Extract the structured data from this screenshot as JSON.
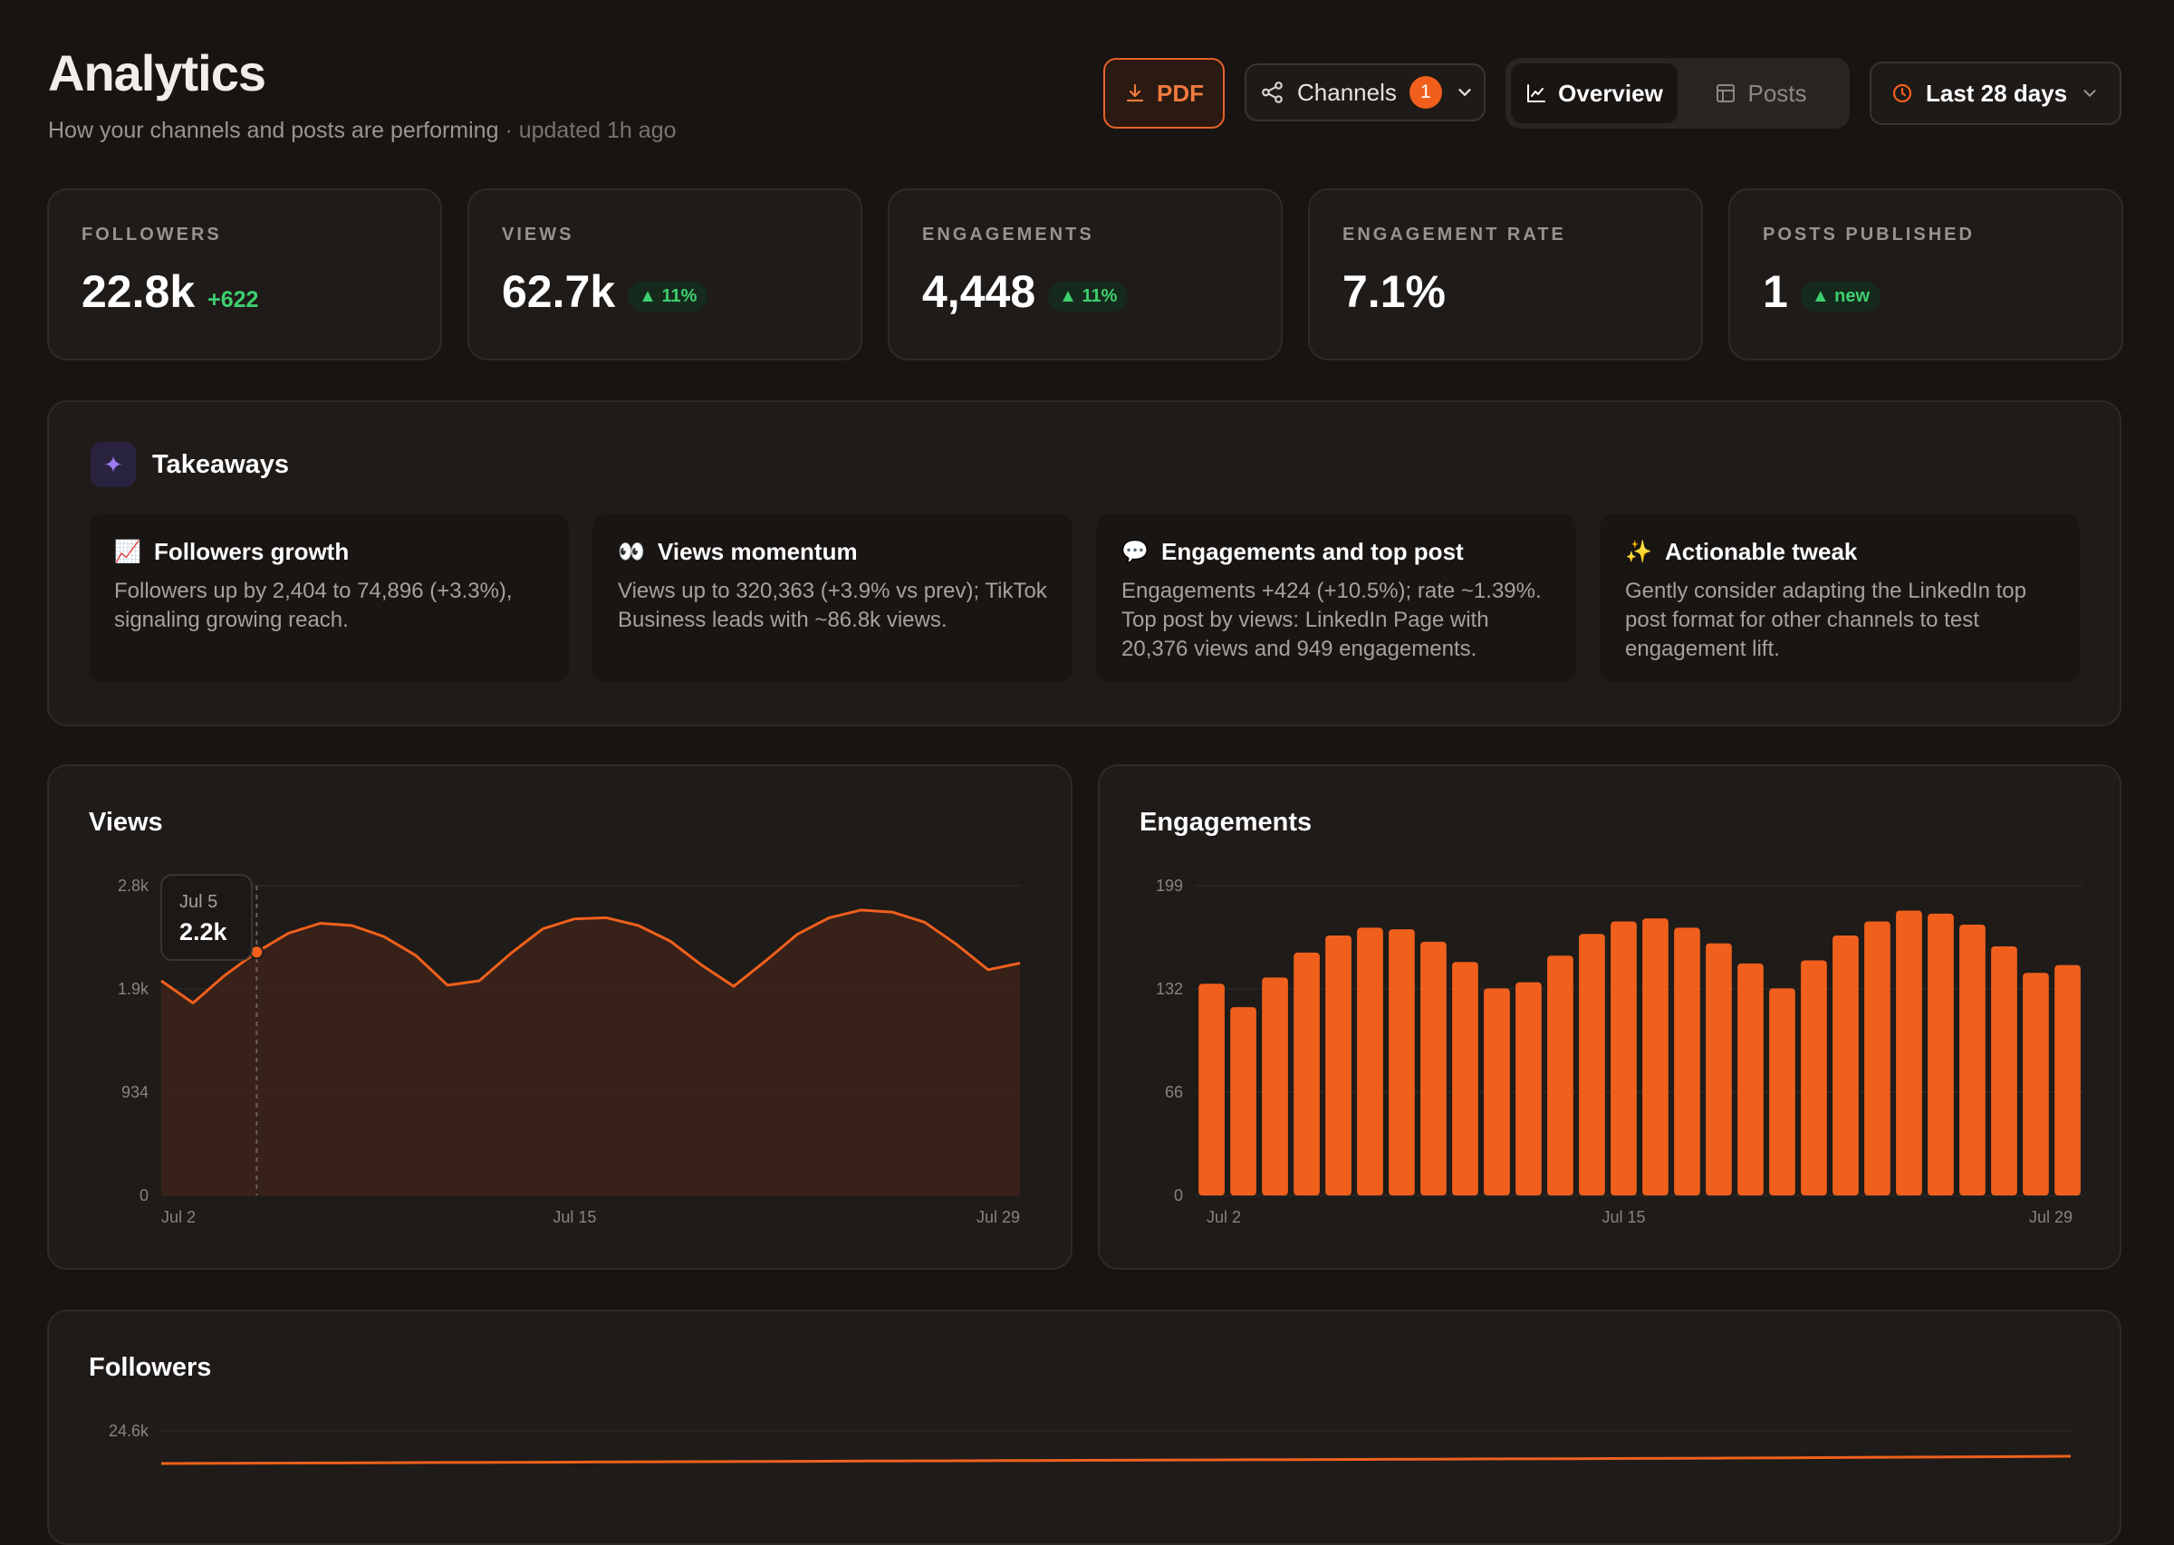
{
  "header": {
    "title": "Analytics",
    "subtitle": "How your channels and posts are performing",
    "updated": " · updated 1h ago"
  },
  "toolbar": {
    "pdf_label": "PDF",
    "channels_label": "Channels",
    "channels_count": "1",
    "tabs": [
      {
        "label": "Overview",
        "active": true
      },
      {
        "label": "Posts",
        "active": false
      }
    ],
    "range_label": "Last 28 days"
  },
  "kpis": [
    {
      "label": "FOLLOWERS",
      "value": "22.8k",
      "delta": "+622",
      "delta_style": "plain"
    },
    {
      "label": "VIEWS",
      "value": "62.7k",
      "delta": "▲ 11%",
      "delta_style": "pill"
    },
    {
      "label": "ENGAGEMENTS",
      "value": "4,448",
      "delta": "▲ 11%",
      "delta_style": "pill"
    },
    {
      "label": "ENGAGEMENT RATE",
      "value": "7.1%",
      "delta": "",
      "delta_style": "none"
    },
    {
      "label": "POSTS PUBLISHED",
      "value": "1",
      "delta": "▲ new",
      "delta_style": "pill"
    }
  ],
  "takeaways": {
    "title": "Takeaways",
    "cards": [
      {
        "emoji": "📈",
        "title": "Followers growth",
        "body": "Followers up by 2,404 to 74,896 (+3.3%), signaling growing reach."
      },
      {
        "emoji": "👀",
        "title": "Views momentum",
        "body": "Views up to 320,363 (+3.9% vs prev); TikTok Business leads with ~86.8k views."
      },
      {
        "emoji": "💬",
        "title": "Engagements and top post",
        "body": "Engagements +424 (+10.5%); rate ~1.39%. Top post by views: LinkedIn Page with 20,376 views and 949 engagements."
      },
      {
        "emoji": "✨",
        "title": "Actionable tweak",
        "body": "Gently consider adapting the LinkedIn top post format for other channels to test engagement lift."
      }
    ]
  },
  "colors": {
    "accent": "#f0601c",
    "positive": "#3ecf6e",
    "background": "#181412",
    "card": "#1f1b19"
  },
  "chart_data": [
    {
      "type": "area",
      "title": "Views",
      "ylim": [
        0,
        2800
      ],
      "yticks": [
        "2.8k",
        "1.9k",
        "934",
        "0"
      ],
      "xticks": [
        "Jul 2",
        "Jul 15",
        "Jul 29"
      ],
      "x": [
        "Jul 2",
        "Jul 3",
        "Jul 4",
        "Jul 5",
        "Jul 6",
        "Jul 7",
        "Jul 8",
        "Jul 9",
        "Jul 10",
        "Jul 11",
        "Jul 12",
        "Jul 13",
        "Jul 14",
        "Jul 15",
        "Jul 16",
        "Jul 17",
        "Jul 18",
        "Jul 19",
        "Jul 20",
        "Jul 21",
        "Jul 22",
        "Jul 23",
        "Jul 24",
        "Jul 25",
        "Jul 26",
        "Jul 27",
        "Jul 28",
        "Jul 29"
      ],
      "values": [
        1940,
        1740,
        1990,
        2200,
        2370,
        2460,
        2440,
        2340,
        2170,
        1900,
        1940,
        2190,
        2410,
        2500,
        2510,
        2440,
        2300,
        2080,
        1890,
        2120,
        2360,
        2510,
        2580,
        2560,
        2470,
        2270,
        2040,
        2100
      ],
      "tooltip": {
        "date": "Jul 5",
        "value": "2.2k"
      }
    },
    {
      "type": "bar",
      "title": "Engagements",
      "ylim": [
        0,
        199
      ],
      "yticks": [
        "199",
        "132",
        "66",
        "0"
      ],
      "xticks": [
        "Jul 2",
        "Jul 15",
        "Jul 29"
      ],
      "x": [
        "Jul 2",
        "Jul 3",
        "Jul 4",
        "Jul 5",
        "Jul 6",
        "Jul 7",
        "Jul 8",
        "Jul 9",
        "Jul 10",
        "Jul 11",
        "Jul 12",
        "Jul 13",
        "Jul 14",
        "Jul 15",
        "Jul 16",
        "Jul 17",
        "Jul 18",
        "Jul 19",
        "Jul 20",
        "Jul 21",
        "Jul 22",
        "Jul 23",
        "Jul 24",
        "Jul 25",
        "Jul 26",
        "Jul 27",
        "Jul 28",
        "Jul 29"
      ],
      "values": [
        136,
        121,
        140,
        156,
        167,
        172,
        171,
        163,
        150,
        133,
        137,
        154,
        168,
        176,
        178,
        172,
        162,
        149,
        133,
        151,
        167,
        176,
        183,
        181,
        174,
        160,
        143,
        148
      ]
    },
    {
      "type": "line",
      "title": "Followers",
      "yticks": [
        "24.6k"
      ],
      "values": [
        22180,
        22200,
        22220,
        22240,
        22260,
        22280,
        22300,
        22320,
        22340,
        22360,
        22380,
        22400,
        22420,
        22440,
        22460,
        22480,
        22500,
        22520,
        22540,
        22560,
        22580,
        22600,
        22620,
        22650,
        22680,
        22710,
        22740,
        22780
      ]
    }
  ]
}
